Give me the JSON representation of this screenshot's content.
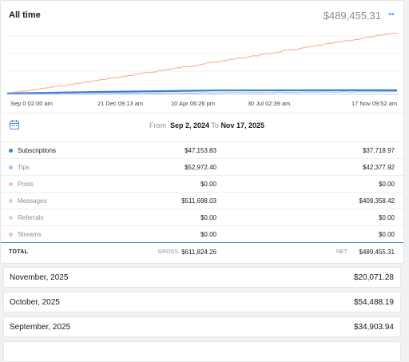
{
  "header": {
    "title": "All time",
    "total": "$489,455.31",
    "more_icon": "more-options-icon"
  },
  "chart": {
    "x_ticks": [
      "Sep 0 02:00 am",
      "21 Dec 09:13 am",
      "10 Apr 06:26 pm",
      "30 Jul 02:39 am",
      "17 Nov 09:52 am"
    ],
    "colors": {
      "earnings": "#f2a98f",
      "subscriptions": "#3d7ed8",
      "tips": "#9cc3ee"
    }
  },
  "range": {
    "from_label": "From",
    "from_date": "Sep 2, 2024",
    "to_label": "To",
    "to_date": "Nov 17, 2025"
  },
  "rows": [
    {
      "label": "Subscriptions",
      "gross": "$47,153.83",
      "net": "$37,718.97",
      "color": "#3d7ed8"
    },
    {
      "label": "Tips",
      "gross": "$52,972.40",
      "net": "$42,377.92",
      "color": "#9cc3ee"
    },
    {
      "label": "Posts",
      "gross": "$0.00",
      "net": "$0.00",
      "color": "#f4c2a8"
    },
    {
      "label": "Messages",
      "gross": "$511,698.03",
      "net": "$409,358.42",
      "color": "#f2c8b4"
    },
    {
      "label": "Referrals",
      "gross": "$0.00",
      "net": "$0.00",
      "color": "#d3d6da"
    },
    {
      "label": "Streams",
      "gross": "$0.00",
      "net": "$0.00",
      "color": "#f4c2a8"
    }
  ],
  "total": {
    "label": "TOTAL",
    "gross_label": "GROSS",
    "gross": "$611,824.26",
    "net_label": "NET",
    "net": "$489,455.31"
  },
  "months": [
    {
      "label": "November, 2025",
      "value": "$20,071.28"
    },
    {
      "label": "October, 2025",
      "value": "$54,488.19"
    },
    {
      "label": "September, 2025",
      "value": "$34,903.94"
    }
  ]
}
